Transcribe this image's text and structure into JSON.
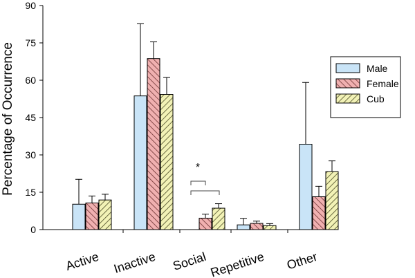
{
  "chart_data": {
    "type": "bar",
    "title": "",
    "xlabel": "",
    "ylabel": "Percentage of Occurrence",
    "ylim": [
      0,
      90
    ],
    "yticks": [
      0,
      15,
      30,
      45,
      60,
      75,
      90
    ],
    "categories": [
      "Active",
      "Inactive",
      "Social",
      "Repetitive",
      "Other"
    ],
    "series": [
      {
        "name": "Male",
        "color": "#c9e4f7",
        "pattern": "solid",
        "values": [
          10.2,
          53.7,
          0,
          1.9,
          34.3
        ],
        "errors": [
          10.0,
          29.0,
          0,
          2.6,
          24.8
        ]
      },
      {
        "name": "Female",
        "color": "#f0b0b0",
        "pattern": "diagonal-hatch-left",
        "values": [
          10.7,
          68.7,
          4.6,
          2.5,
          13.2
        ],
        "errors": [
          2.8,
          6.7,
          1.6,
          0.9,
          4.2
        ]
      },
      {
        "name": "Cub",
        "color": "#f2f2b6",
        "pattern": "diagonal-hatch-right",
        "values": [
          11.9,
          54.3,
          8.6,
          1.6,
          23.3
        ],
        "errors": [
          2.3,
          6.8,
          1.8,
          0.8,
          4.3
        ]
      }
    ],
    "legend": {
      "position": "top-right",
      "entries": [
        "Male",
        "Female",
        "Cub"
      ]
    },
    "annotations": [
      {
        "text": "*",
        "category": "Social",
        "type": "significance-bracket"
      }
    ],
    "grid": false
  }
}
